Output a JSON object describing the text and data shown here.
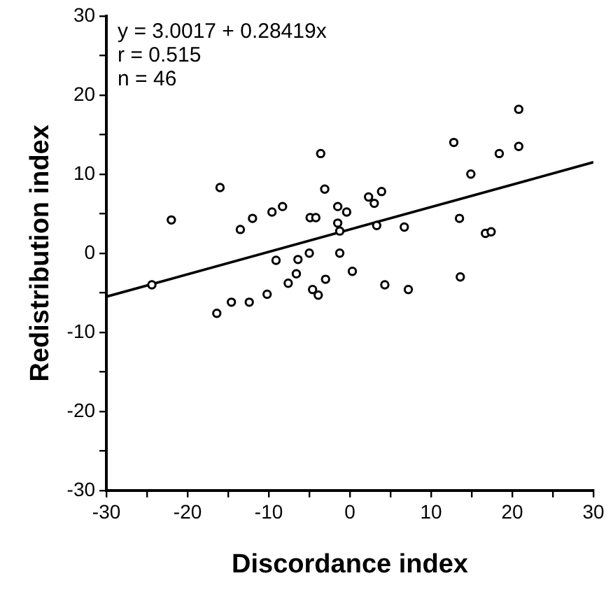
{
  "chart_data": {
    "type": "scatter",
    "xlabel": "Discordance index",
    "ylabel": "Redistribution index",
    "annotations": [
      "y = 3.0017 + 0.28419x",
      "r = 0.515",
      "n = 46"
    ],
    "xlim": [
      -30,
      30
    ],
    "ylim": [
      -30,
      30
    ],
    "xticks": [
      -30,
      {
        "value": -25,
        "label": null
      },
      -20,
      {
        "value": -15,
        "label": null
      },
      -10,
      {
        "value": -5,
        "label": null
      },
      0,
      {
        "value": 5,
        "label": null
      },
      10,
      {
        "value": 15,
        "label": null
      },
      20,
      {
        "value": 25,
        "label": null
      },
      30
    ],
    "yticks": [
      -30,
      {
        "value": -25,
        "label": null
      },
      -20,
      {
        "value": -15,
        "label": null
      },
      -10,
      {
        "value": -5,
        "label": null
      },
      0,
      {
        "value": 5,
        "label": null
      },
      10,
      {
        "value": 15,
        "label": null
      },
      20,
      {
        "value": 25,
        "label": null
      },
      30
    ],
    "grid": false,
    "legend": false,
    "marker": "circle",
    "series": [
      {
        "color": "#000000",
        "x": [
          -24.4,
          -22.0,
          -16.0,
          -16.4,
          -14.6,
          -13.5,
          -12.4,
          -12.0,
          -10.2,
          -9.6,
          -9.1,
          -8.3,
          -7.6,
          -6.6,
          -6.4,
          -5.0,
          -4.9,
          -4.2,
          -4.6,
          -3.9,
          -3.6,
          -3.1,
          -3.0,
          -1.5,
          -1.5,
          -1.25,
          -1.25,
          -0.4,
          0.3,
          2.3,
          3.0,
          3.9,
          3.3,
          4.3,
          6.7,
          7.2,
          12.8,
          13.5,
          13.6,
          14.9,
          16.7,
          17.4,
          18.4,
          20.8,
          20.8
        ],
        "values": [
          -4.0,
          4.2,
          8.3,
          -7.6,
          -6.2,
          3.0,
          -6.2,
          4.4,
          -5.2,
          5.2,
          -0.9,
          5.9,
          -3.8,
          -2.6,
          -0.8,
          0,
          4.5,
          4.5,
          -4.6,
          -5.3,
          12.6,
          8.1,
          -3.3,
          5.9,
          3.8,
          2.8,
          0,
          5.2,
          -2.3,
          7.1,
          6.3,
          7.8,
          3.5,
          -4.0,
          3.3,
          -4.6,
          14.0,
          4.4,
          -3.0,
          10.0,
          2.5,
          2.7,
          12.6,
          18.2,
          13.5
        ]
      },
      {
        "type": "line",
        "color": "#000000",
        "marker": "none",
        "line_style": "solid",
        "x": [
          -30,
          30
        ],
        "values": [
          -5.5,
          11.5
        ]
      }
    ]
  }
}
